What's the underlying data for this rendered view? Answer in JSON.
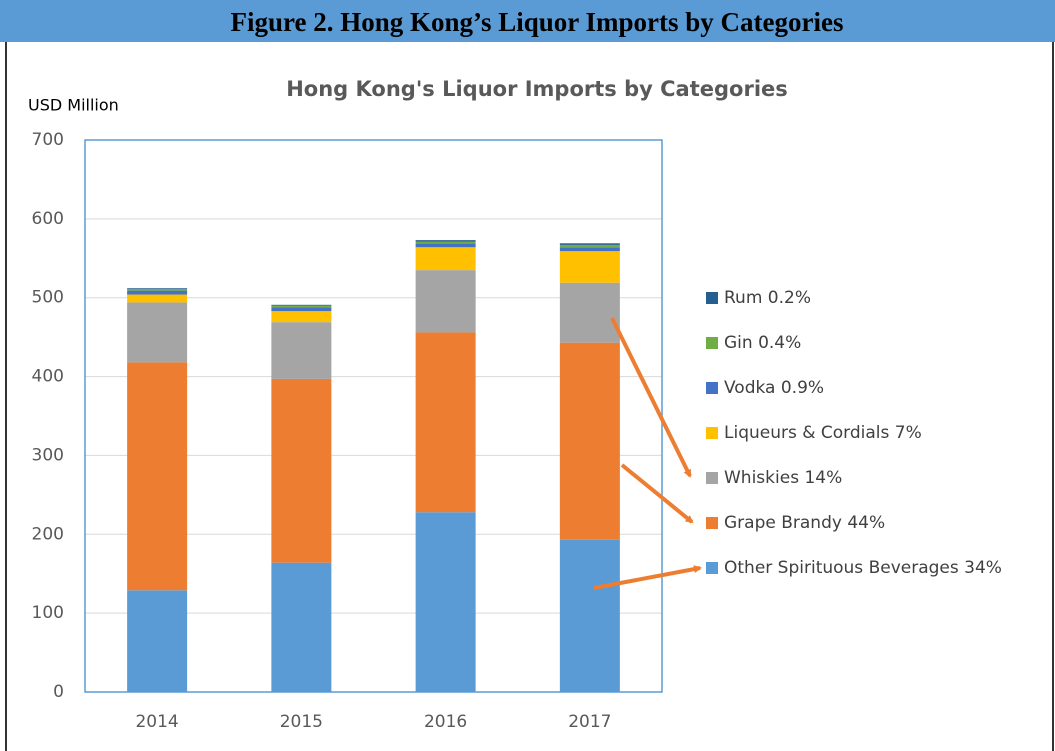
{
  "figure_title": "Figure 2. Hong Kong’s Liquor Imports by Categories",
  "chart_data": {
    "type": "stacked_bar",
    "title": "Hong Kong's Liquor Imports by Categories",
    "y_label": "USD Million",
    "categories": [
      "2014",
      "2015",
      "2016",
      "2017"
    ],
    "series": [
      {
        "name": "Other Spirituous Beverages 34%",
        "color": "#5b9bd5",
        "values": [
          129,
          164,
          228,
          193
        ]
      },
      {
        "name": "Grape Brandy 44%",
        "color": "#ed7d31",
        "values": [
          289,
          233,
          228,
          250
        ]
      },
      {
        "name": "Whiskies 14%",
        "color": "#a5a5a5",
        "values": [
          76,
          72,
          79,
          76
        ]
      },
      {
        "name": "Liqueurs & Cordials 7%",
        "color": "#ffc000",
        "values": [
          10,
          14,
          29,
          40
        ]
      },
      {
        "name": "Vodka 0.9%",
        "color": "#4472c4",
        "values": [
          5,
          5,
          5,
          5
        ]
      },
      {
        "name": "Gin 0.4%",
        "color": "#70ad47",
        "values": [
          2,
          2,
          2,
          3
        ]
      },
      {
        "name": "Rum 0.2%",
        "color": "#255e91",
        "values": [
          1,
          1,
          2,
          2
        ]
      }
    ],
    "ylim": [
      0,
      700
    ],
    "yticks": [
      0,
      100,
      200,
      300,
      400,
      500,
      600,
      700
    ],
    "grid": true
  }
}
